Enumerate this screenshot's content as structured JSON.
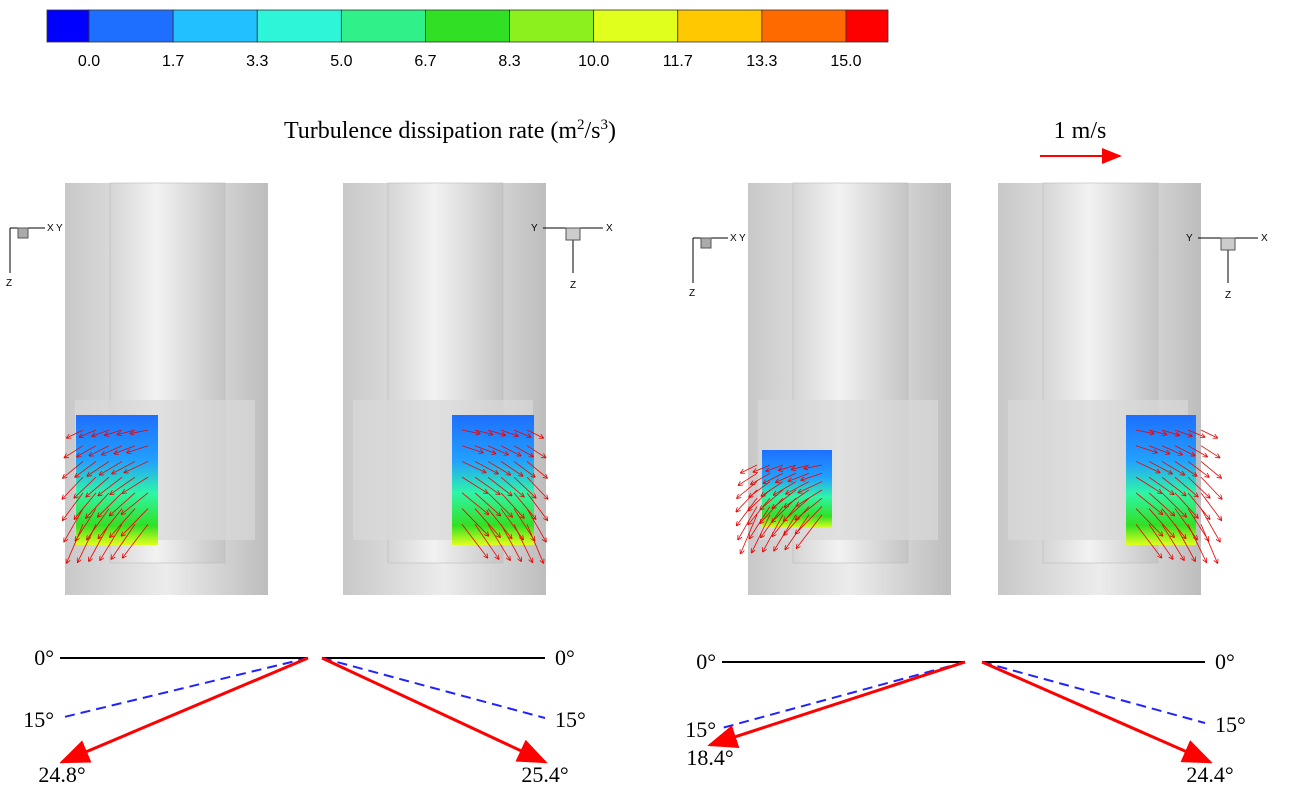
{
  "colorbar": {
    "colors": [
      "#0000ff",
      "#1e6fff",
      "#22c0ff",
      "#2ff5d8",
      "#30f08a",
      "#31e024",
      "#8cf01e",
      "#e0ff1c",
      "#ffc800",
      "#ff6a00",
      "#ff0000"
    ],
    "labels": [
      "0.0",
      "1.7",
      "3.3",
      "5.0",
      "6.7",
      "8.3",
      "10.0",
      "11.7",
      "13.3",
      "15.0"
    ]
  },
  "title": {
    "text": "Turbulence dissipation rate (m",
    "sup1": "2",
    "mid": "/s",
    "sup2": "3",
    "end": ")"
  },
  "scale": "1 m/s",
  "panels": [
    {
      "triad": [
        "X",
        "Y",
        "Z"
      ]
    },
    {
      "triad": [
        "Y",
        "X",
        "Z"
      ]
    },
    {
      "triad": [
        "X",
        "Y",
        "Z"
      ]
    },
    {
      "triad": [
        "Y",
        "X",
        "Z"
      ]
    }
  ],
  "angles": [
    {
      "zero": "0°",
      "dashed": "15°",
      "arrow": "24.8°"
    },
    {
      "zero": "0°",
      "dashed": "15°",
      "arrow": "25.4°"
    },
    {
      "zero": "0°",
      "dashed": "15°",
      "arrow": "18.4°"
    },
    {
      "zero": "0°",
      "dashed": "15°",
      "arrow": "24.4°"
    }
  ]
}
